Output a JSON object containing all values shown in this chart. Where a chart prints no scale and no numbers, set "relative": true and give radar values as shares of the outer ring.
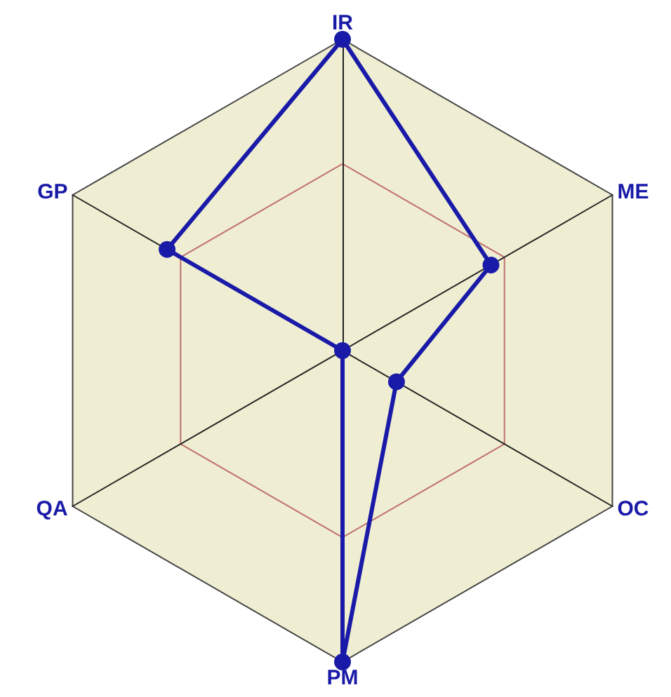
{
  "chart_data": {
    "type": "radar",
    "relative": true,
    "categories": [
      "IR",
      "ME",
      "OC",
      "PM",
      "QA",
      "GP"
    ],
    "series": [
      {
        "color": "#1a1aa8",
        "values": [
          1,
          0.55,
          0.2,
          1,
          0,
          0.65
        ]
      }
    ],
    "marker": "circle",
    "line_style": "solid"
  }
}
